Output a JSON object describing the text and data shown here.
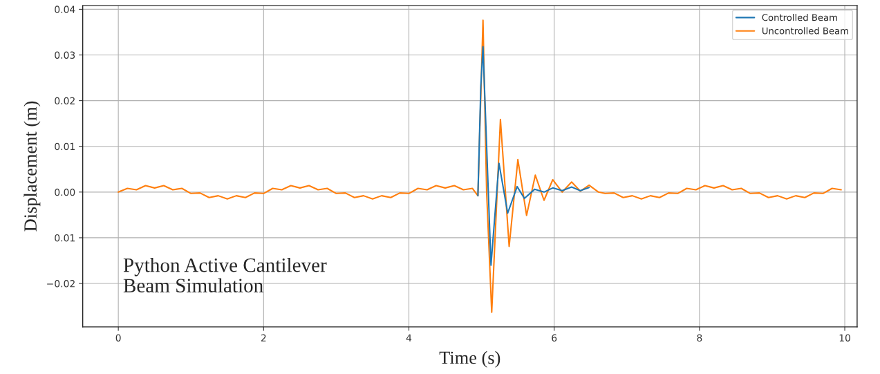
{
  "chart_data": {
    "type": "line",
    "xlabel": "Time (s)",
    "ylabel": "Displacement (m)",
    "annotations": [
      "Python Active Cantilever\nBeam Simulation"
    ],
    "xlim": [
      -0.49,
      10.17
    ],
    "ylim": [
      -0.0295,
      0.0408
    ],
    "xticks": [
      0,
      2,
      4,
      6,
      8,
      10
    ],
    "yticks": [
      {
        "value": -0.02,
        "label": "−0.02"
      },
      {
        "value": -0.01,
        "label": "0.01"
      },
      {
        "value": 0.0,
        "label": "0.00"
      },
      {
        "value": 0.01,
        "label": "0.01"
      },
      {
        "value": 0.02,
        "label": "0.02"
      },
      {
        "value": 0.03,
        "label": "0.03"
      },
      {
        "value": 0.04,
        "label": "0.04"
      }
    ],
    "grid": true,
    "legend": "top right",
    "line_style": "solid",
    "series": [
      {
        "name": "Controlled Beam",
        "color": "#1f77b4",
        "x": [
          4.95,
          4.99,
          5.02,
          5.13,
          5.24,
          5.36,
          5.49,
          5.59,
          5.73,
          5.86,
          5.98,
          6.11,
          6.24,
          6.36,
          6.48
        ],
        "values": [
          -0.0008,
          0.0232,
          0.0318,
          -0.016,
          0.0063,
          -0.0046,
          0.0012,
          -0.0014,
          0.0006,
          0.0,
          0.0009,
          0.0003,
          0.0011,
          0.0003,
          0.001
        ]
      },
      {
        "name": "Uncontrolled Beam",
        "color": "#ff7f0e",
        "x": [
          0,
          0.125,
          0.25,
          0.375,
          0.5,
          0.625,
          0.75,
          0.875,
          1,
          1.125,
          1.25,
          1.375,
          1.5,
          1.625,
          1.75,
          1.875,
          2,
          2.125,
          2.25,
          2.375,
          2.5,
          2.625,
          2.75,
          2.875,
          3,
          3.125,
          3.25,
          3.375,
          3.5,
          3.625,
          3.75,
          3.875,
          4,
          4.125,
          4.25,
          4.375,
          4.5,
          4.625,
          4.75,
          4.875,
          4.95,
          5.02,
          5.07,
          5.14,
          5.26,
          5.38,
          5.5,
          5.62,
          5.74,
          5.86,
          5.98,
          6.11,
          6.24,
          6.36,
          6.48,
          6.61,
          6.7,
          6.825,
          6.95,
          7.075,
          7.2,
          7.325,
          7.45,
          7.575,
          7.7,
          7.825,
          7.95,
          8.075,
          8.2,
          8.325,
          8.45,
          8.575,
          8.7,
          8.825,
          8.95,
          9.075,
          9.2,
          9.325,
          9.45,
          9.575,
          9.7,
          9.825,
          9.95
        ],
        "values": [
          0,
          0.0008,
          0.0005,
          0.0014,
          0.0009,
          0.0014,
          0.0005,
          0.0008,
          -0.0003,
          -0.0002,
          -0.0012,
          -0.0008,
          -0.0015,
          -0.0008,
          -0.0012,
          -0.0002,
          -0.0003,
          0.0008,
          0.0005,
          0.0014,
          0.0009,
          0.0014,
          0.0005,
          0.0008,
          -0.0003,
          -0.0002,
          -0.0012,
          -0.0008,
          -0.0015,
          -0.0008,
          -0.0012,
          -0.0002,
          -0.0003,
          0.0008,
          0.0005,
          0.0014,
          0.0009,
          0.0014,
          0.0005,
          0.0008,
          -0.0008,
          0.0376,
          0.0,
          -0.0263,
          0.0159,
          -0.0119,
          0.0071,
          -0.0051,
          0.0037,
          -0.0018,
          0.0027,
          0.0,
          0.0022,
          0.0002,
          0.0015,
          0.0,
          -0.0003,
          -0.0002,
          -0.0012,
          -0.0008,
          -0.0015,
          -0.0008,
          -0.0012,
          -0.0002,
          -0.0003,
          0.0008,
          0.0005,
          0.0014,
          0.0009,
          0.0014,
          0.0005,
          0.0008,
          -0.0003,
          -0.0002,
          -0.0012,
          -0.0008,
          -0.0015,
          -0.0008,
          -0.0012,
          -0.0002,
          -0.0003,
          0.0008,
          0.0005
        ]
      }
    ]
  }
}
